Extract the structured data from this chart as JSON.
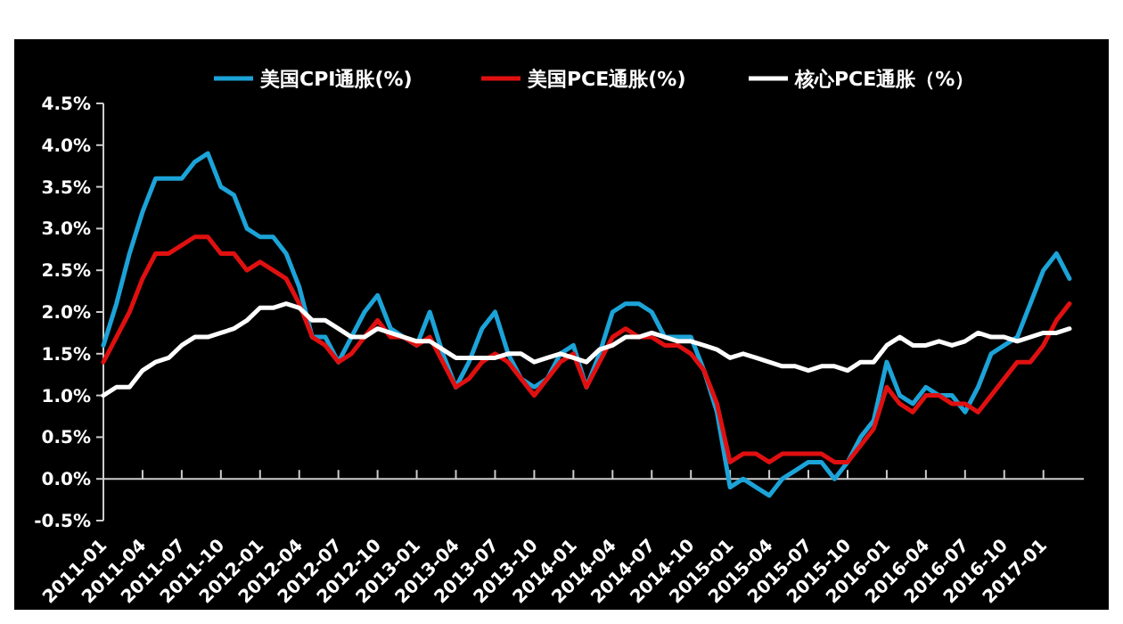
{
  "chart_data": {
    "type": "line",
    "categories": [
      "2011-01",
      null,
      null,
      "2011-04",
      null,
      null,
      "2011-07",
      null,
      null,
      "2011-10",
      null,
      null,
      "2012-01",
      null,
      null,
      "2012-04",
      null,
      null,
      "2012-07",
      null,
      null,
      "2012-10",
      null,
      null,
      "2013-01",
      null,
      null,
      "2013-04",
      null,
      null,
      "2013-07",
      null,
      null,
      "2013-10",
      null,
      null,
      "2014-01",
      null,
      null,
      "2014-04",
      null,
      null,
      "2014-07",
      null,
      null,
      "2014-10",
      null,
      null,
      "2015-01",
      null,
      null,
      "2015-04",
      null,
      null,
      "2015-07",
      null,
      null,
      "2015-10",
      null,
      null,
      "2016-01",
      null,
      null,
      "2016-04",
      null,
      null,
      "2016-07",
      null,
      null,
      "2016-10",
      null,
      null,
      "2017-01",
      null,
      null
    ],
    "series": [
      {
        "name": "美国CPI通胀(%)",
        "color": "#1ca3d8",
        "values": [
          1.6,
          2.1,
          2.7,
          3.2,
          3.6,
          3.6,
          3.6,
          3.8,
          3.9,
          3.5,
          3.4,
          3.0,
          2.9,
          2.9,
          2.7,
          2.3,
          1.7,
          1.7,
          1.4,
          1.7,
          2.0,
          2.2,
          1.8,
          1.7,
          1.6,
          2.0,
          1.5,
          1.1,
          1.4,
          1.8,
          2.0,
          1.5,
          1.2,
          1.1,
          1.2,
          1.5,
          1.6,
          1.1,
          1.5,
          2.0,
          2.1,
          2.1,
          2.0,
          1.7,
          1.7,
          1.7,
          1.3,
          0.8,
          -0.1,
          0.0,
          -0.1,
          -0.2,
          0.0,
          0.1,
          0.2,
          0.2,
          0.0,
          0.2,
          0.5,
          0.7,
          1.4,
          1.0,
          0.9,
          1.1,
          1.0,
          1.0,
          0.8,
          1.1,
          1.5,
          1.6,
          1.7,
          2.1,
          2.5,
          2.7,
          2.4
        ]
      },
      {
        "name": "美国PCE通胀(%)",
        "color": "#e01010",
        "values": [
          1.4,
          1.7,
          2.0,
          2.4,
          2.7,
          2.7,
          2.8,
          2.9,
          2.9,
          2.7,
          2.7,
          2.5,
          2.6,
          2.5,
          2.4,
          2.1,
          1.7,
          1.6,
          1.4,
          1.5,
          1.7,
          1.9,
          1.7,
          1.7,
          1.6,
          1.7,
          1.4,
          1.1,
          1.2,
          1.4,
          1.5,
          1.4,
          1.2,
          1.0,
          1.2,
          1.4,
          1.5,
          1.1,
          1.4,
          1.7,
          1.8,
          1.7,
          1.7,
          1.6,
          1.6,
          1.5,
          1.3,
          0.9,
          0.2,
          0.3,
          0.3,
          0.2,
          0.3,
          0.3,
          0.3,
          0.3,
          0.2,
          0.2,
          0.4,
          0.6,
          1.1,
          0.9,
          0.8,
          1.0,
          1.0,
          0.9,
          0.9,
          0.8,
          1.0,
          1.2,
          1.4,
          1.4,
          1.6,
          1.9,
          2.1
        ]
      },
      {
        "name": "核心PCE通胀（%）",
        "color": "#ffffff",
        "values": [
          1.0,
          1.1,
          1.1,
          1.3,
          1.4,
          1.45,
          1.6,
          1.7,
          1.7,
          1.75,
          1.8,
          1.9,
          2.05,
          2.05,
          2.1,
          2.05,
          1.9,
          1.9,
          1.8,
          1.7,
          1.7,
          1.8,
          1.75,
          1.7,
          1.65,
          1.65,
          1.55,
          1.45,
          1.45,
          1.45,
          1.45,
          1.5,
          1.5,
          1.4,
          1.45,
          1.5,
          1.45,
          1.4,
          1.55,
          1.6,
          1.7,
          1.7,
          1.75,
          1.7,
          1.65,
          1.65,
          1.6,
          1.55,
          1.45,
          1.5,
          1.45,
          1.4,
          1.35,
          1.35,
          1.3,
          1.35,
          1.35,
          1.3,
          1.4,
          1.4,
          1.6,
          1.7,
          1.6,
          1.6,
          1.65,
          1.6,
          1.65,
          1.75,
          1.7,
          1.7,
          1.65,
          1.7,
          1.75,
          1.75,
          1.8
        ]
      }
    ],
    "ylim": [
      -0.5,
      4.5
    ],
    "yticks": [
      {
        "value": -0.5,
        "label": "-0.5%"
      },
      {
        "value": 0,
        "label": "0.0%"
      },
      {
        "value": 0.5,
        "label": "0.5%"
      },
      {
        "value": 1,
        "label": "1.0%"
      },
      {
        "value": 1.5,
        "label": "1.5%"
      },
      {
        "value": 2,
        "label": "2.0%"
      },
      {
        "value": 2.5,
        "label": "2.5%"
      },
      {
        "value": 3,
        "label": "3.0%"
      },
      {
        "value": 3.5,
        "label": "3.5%"
      },
      {
        "value": 4,
        "label": "4.0%"
      },
      {
        "value": 4.5,
        "label": "4.5%"
      }
    ],
    "legend": "top",
    "line_style": "solid",
    "marker": "none"
  }
}
